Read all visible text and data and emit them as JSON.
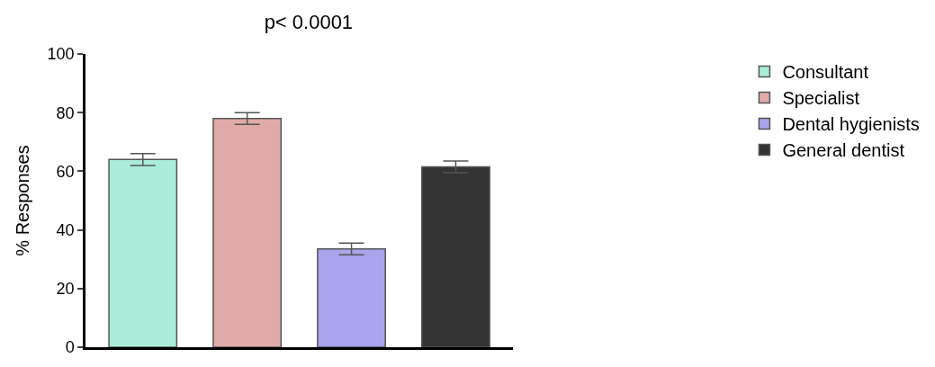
{
  "chart_data": {
    "type": "bar",
    "title": "p< 0.0001",
    "ylabel": "% Responses",
    "categories": [
      null,
      null,
      null,
      null
    ],
    "series": [
      {
        "name": "Consultant",
        "color": "#aaecd8",
        "values": [
          64,
          null,
          null,
          null
        ],
        "errors": [
          2,
          null,
          null,
          null
        ]
      },
      {
        "name": "Specialist",
        "color": "#e0aaa8",
        "values": [
          null,
          78,
          null,
          null
        ],
        "errors": [
          null,
          2,
          null,
          null
        ]
      },
      {
        "name": "Dental hygienists",
        "color": "#aaa4ec",
        "values": [
          null,
          null,
          33.5,
          null
        ],
        "errors": [
          null,
          null,
          2,
          null
        ]
      },
      {
        "name": "General dentist",
        "color": "#333333",
        "values": [
          null,
          null,
          null,
          61.5
        ],
        "errors": [
          null,
          null,
          null,
          2
        ]
      }
    ],
    "ylim": [
      0,
      100
    ],
    "yticks": [
      0,
      20,
      40,
      60,
      80,
      100
    ],
    "legend": "top right"
  }
}
